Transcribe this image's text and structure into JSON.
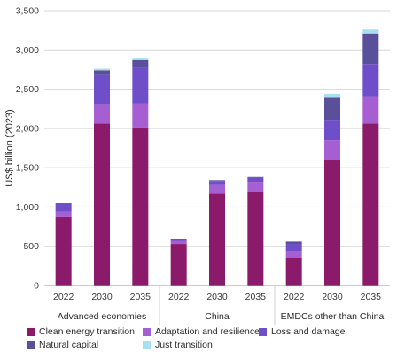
{
  "chart_data": {
    "type": "bar",
    "stacked": true,
    "ylabel": "US$ billion (2023)",
    "ylim": [
      0,
      3500
    ],
    "yticks": [
      0,
      500,
      1000,
      1500,
      2000,
      2500,
      3000,
      3500
    ],
    "ytick_labels": [
      "0",
      "500",
      "1,000",
      "1,500",
      "2,000",
      "2,500",
      "3,000",
      "3,500"
    ],
    "grid": "horizontal",
    "legend_position": "bottom",
    "groups": [
      {
        "label": "Advanced economies",
        "categories": [
          "2022",
          "2030",
          "2035"
        ]
      },
      {
        "label": "China",
        "categories": [
          "2022",
          "2030",
          "2035"
        ]
      },
      {
        "label": "EMDCs other than China",
        "categories": [
          "2022",
          "2030",
          "2035"
        ]
      }
    ],
    "series": [
      {
        "name": "Clean energy transition",
        "color": "#8b1a6b",
        "values": [
          870,
          2060,
          2010,
          530,
          1170,
          1190,
          350,
          1600,
          2060
        ]
      },
      {
        "name": "Adaptation and resilience",
        "color": "#a65fd3",
        "values": [
          70,
          250,
          310,
          40,
          110,
          130,
          90,
          250,
          350
        ]
      },
      {
        "name": "Loss and damage",
        "color": "#6e4fc9",
        "values": [
          110,
          370,
          450,
          20,
          50,
          50,
          90,
          260,
          410
        ]
      },
      {
        "name": "Natural capital",
        "color": "#5a4f9a",
        "values": [
          0,
          60,
          100,
          0,
          10,
          10,
          30,
          290,
          390
        ]
      },
      {
        "name": "Just transition",
        "color": "#a8e0ef",
        "values": [
          0,
          20,
          30,
          0,
          0,
          0,
          0,
          40,
          50
        ]
      }
    ]
  }
}
